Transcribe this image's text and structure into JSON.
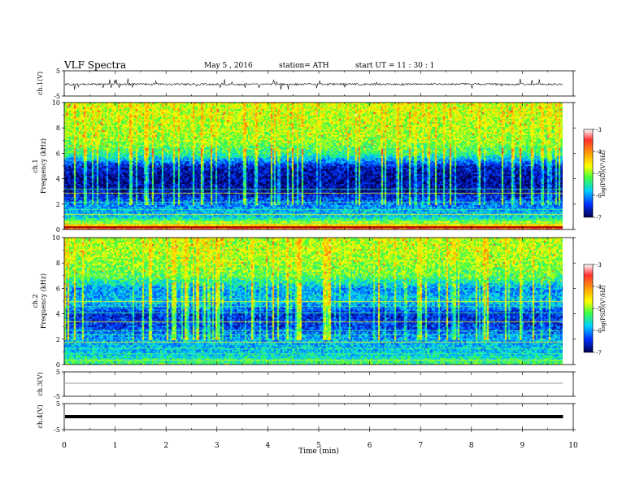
{
  "header": {
    "title": "VLF  Spectra",
    "date": "May 5  , 2016",
    "station": "station= ATH",
    "start": "start  UT  =     11 : 30 : 1"
  },
  "chart_data": [
    {
      "type": "line",
      "ylabel": "ch.1(V)",
      "ylim": [
        -5,
        5
      ],
      "yticks": [
        "5",
        "-5"
      ],
      "xlim": [
        0,
        10
      ],
      "description_values": {
        "baseline": 0,
        "noise_amplitude": 1.2,
        "spike_amplitude": 3
      }
    },
    {
      "type": "heatmap",
      "ylabel": "ch.1\nFrequency  (kHz)",
      "ylim": [
        0,
        10
      ],
      "yticks": [
        "0",
        "2",
        "4",
        "6",
        "8",
        "10"
      ],
      "xlim": [
        0,
        9.8
      ],
      "colorbar": {
        "label": "log(PSD)(V²/Hz)",
        "range": [
          -7,
          -3
        ],
        "ticks": [
          "-3",
          "-4",
          "-5",
          "-6",
          "-7"
        ]
      },
      "profile_khz": [
        0,
        1,
        2,
        3,
        4,
        5,
        6,
        7,
        8,
        9,
        10
      ],
      "profile_level": [
        -3.5,
        -5.7,
        -6.1,
        -6.7,
        -6.8,
        -6.6,
        -5.4,
        -5.0,
        -4.9,
        -4.8,
        -4.8
      ],
      "lines_khz": [
        0.3,
        0.5,
        0.8,
        1.2,
        1.6,
        2.2,
        2.9,
        3.2
      ]
    },
    {
      "type": "heatmap",
      "ylabel": "ch.2\nFrequency  (kHz)",
      "ylim": [
        0,
        10
      ],
      "yticks": [
        "0",
        "2",
        "4",
        "6",
        "8",
        "10"
      ],
      "xlim": [
        0,
        9.8
      ],
      "colorbar": {
        "label": "log(PSD)(V²/Hz)",
        "range": [
          -7,
          -3
        ],
        "ticks": [
          "-3",
          "-4",
          "-5",
          "-6",
          "-7"
        ]
      },
      "profile_khz": [
        0,
        1,
        2,
        3,
        4,
        5,
        6,
        7,
        8,
        9,
        10
      ],
      "profile_level": [
        -5.2,
        -5.8,
        -5.9,
        -6.4,
        -6.5,
        -5.8,
        -6.0,
        -5.2,
        -5.0,
        -4.9,
        -4.9
      ],
      "lines_khz": [
        0.4,
        0.9,
        1.3,
        1.8,
        2.4,
        2.7,
        3.4,
        4.1,
        4.6,
        5.0
      ]
    },
    {
      "type": "line",
      "ylabel": "ch.3(V)",
      "ylim": [
        -5,
        5
      ],
      "yticks": [
        "5",
        "-5"
      ],
      "xlim": [
        0,
        9.8
      ],
      "description_values": {
        "baseline": 0
      }
    },
    {
      "type": "line",
      "ylabel": "ch.4(V)",
      "ylim": [
        -5,
        5
      ],
      "yticks": [
        "5",
        "-5"
      ],
      "xlim": [
        0,
        9.8
      ],
      "xlabel": "Time  (min)",
      "xticks": [
        "0",
        "1",
        "2",
        "3",
        "4",
        "5",
        "6",
        "7",
        "8",
        "9",
        "10"
      ],
      "description_values": {
        "baseline": 0
      }
    }
  ]
}
